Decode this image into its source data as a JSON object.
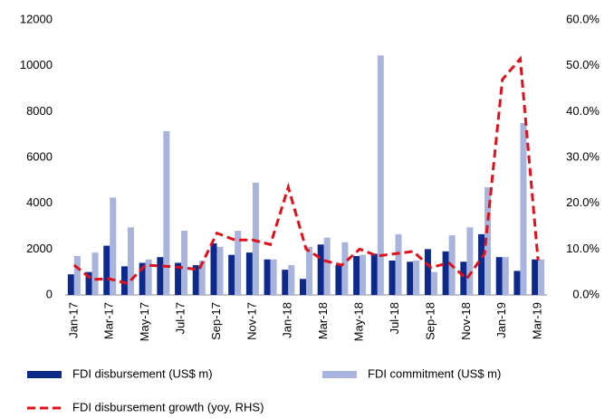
{
  "chart_data": {
    "type": "bar",
    "categories": [
      "Jan-17",
      null,
      "Mar-17",
      null,
      "May-17",
      null,
      "Jul-17",
      null,
      "Sep-17",
      null,
      "Nov-17",
      null,
      "Jan-18",
      null,
      "Mar-18",
      null,
      "May-18",
      null,
      "Jul-18",
      null,
      "Sep-18",
      null,
      "Nov-18",
      null,
      "Jan-19",
      null,
      "Mar-19"
    ],
    "series": [
      {
        "name": "FDI disbursement (US$ m)",
        "type": "bar",
        "color": "#0d2a8a",
        "values": [
          900,
          1000,
          2150,
          1250,
          1400,
          1650,
          1400,
          1300,
          2250,
          1750,
          1850,
          1550,
          1100,
          700,
          2200,
          1300,
          1700,
          1800,
          1500,
          1450,
          2000,
          1900,
          1450,
          2650,
          1650,
          1050,
          1550
        ]
      },
      {
        "name": "FDI commitment (US$ m)",
        "type": "bar",
        "color": "#a8b4dc",
        "values": [
          1700,
          1850,
          4250,
          2950,
          1550,
          7150,
          2800,
          1500,
          2100,
          2800,
          4900,
          1550,
          1300,
          2100,
          2500,
          2300,
          1750,
          10450,
          2650,
          1500,
          1000,
          2600,
          2950,
          4700,
          1650,
          7500,
          1550
        ]
      },
      {
        "name": "FDI disbursement growth (yoy, RHS)",
        "type": "line",
        "axis": "y2",
        "color": "#e0101a",
        "values": [
          6.5,
          3.4,
          3.5,
          2.5,
          6.5,
          6.3,
          6.0,
          5.5,
          13.5,
          12.0,
          12.0,
          11.0,
          23.5,
          10.0,
          7.5,
          6.5,
          10.0,
          8.5,
          9.0,
          9.5,
          6.0,
          7.0,
          3.5,
          9.0,
          47,
          51.5,
          7.5
        ]
      }
    ],
    "ylim": [
      0,
      12000
    ],
    "yticks": [
      0,
      2000,
      4000,
      6000,
      8000,
      10000,
      12000
    ],
    "y2lim": [
      0,
      60
    ],
    "y2ticks": [
      {
        "value": 0,
        "label": "0.0%"
      },
      {
        "value": 10,
        "label": "10.0%"
      },
      {
        "value": 20,
        "label": "20.0%"
      },
      {
        "value": 30,
        "label": "30.0%"
      },
      {
        "value": 40,
        "label": "40.0%"
      },
      {
        "value": 50,
        "label": "50.0%"
      },
      {
        "value": 60,
        "label": "60.0%"
      }
    ],
    "legend": "bottom"
  }
}
